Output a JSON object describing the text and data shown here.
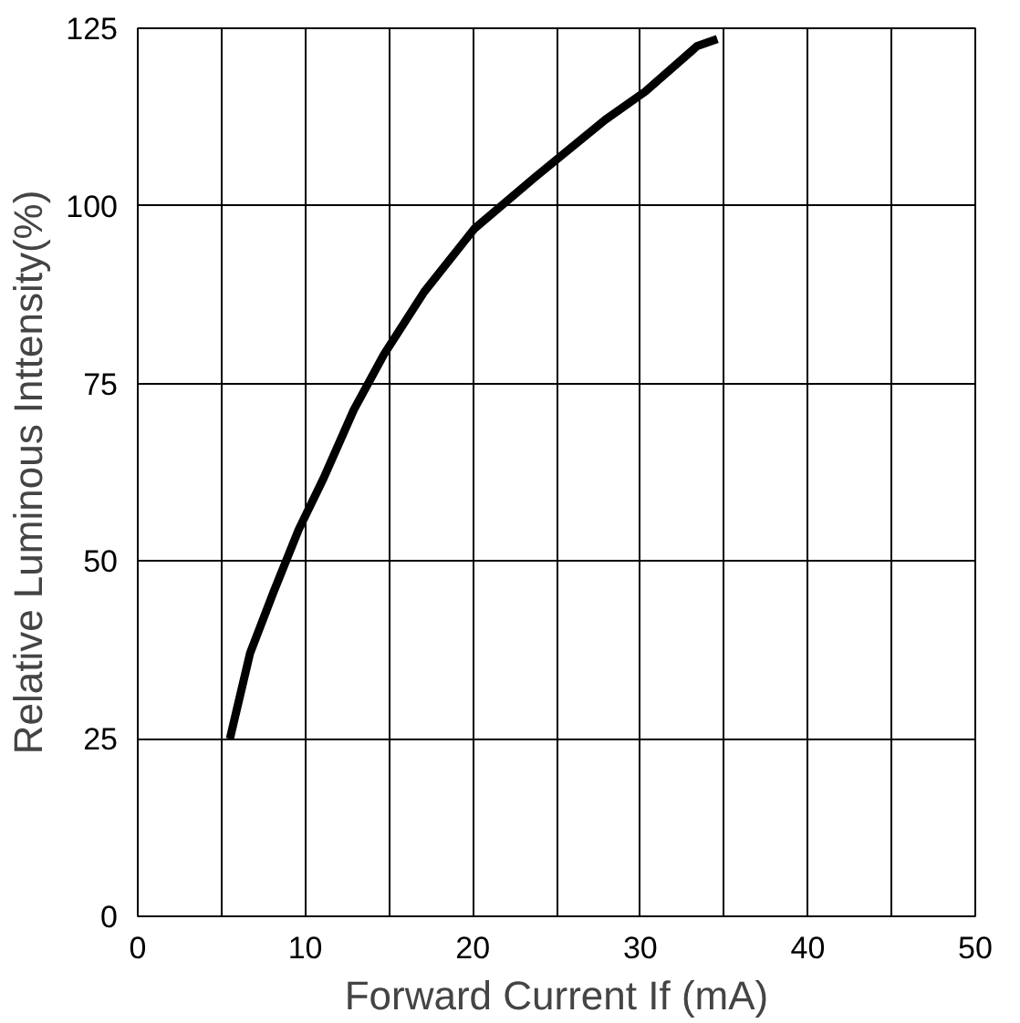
{
  "chart_data": {
    "type": "line",
    "xlabel": "Forward Current If (mA)",
    "ylabel": "Relative Luminous Inttensity(%)",
    "x": [
      5.5,
      6.7,
      8.1,
      9.6,
      11.1,
      12.9,
      14.7,
      17.1,
      20.1,
      23.7,
      27.9,
      30.3,
      33.4,
      34.6
    ],
    "series": [
      {
        "color": "#000000",
        "values": [
          25,
          37,
          45.6,
          54.4,
          61.7,
          71.3,
          79.1,
          87.9,
          96.8,
          104,
          112.1,
          116.1,
          122.5,
          123.5
        ]
      }
    ],
    "xlim": [
      0,
      50
    ],
    "ylim": [
      0,
      125
    ],
    "xticks": [
      0,
      {
        "value": 5,
        "label": null
      },
      10,
      {
        "value": 15,
        "label": null
      },
      20,
      {
        "value": 25,
        "label": null
      },
      30,
      {
        "value": 35,
        "label": null
      },
      40,
      {
        "value": 45,
        "label": null
      },
      50
    ],
    "yticks": [
      0,
      25,
      50,
      75,
      100,
      125
    ],
    "grid": true,
    "marker": "none",
    "line_style": "solid"
  }
}
